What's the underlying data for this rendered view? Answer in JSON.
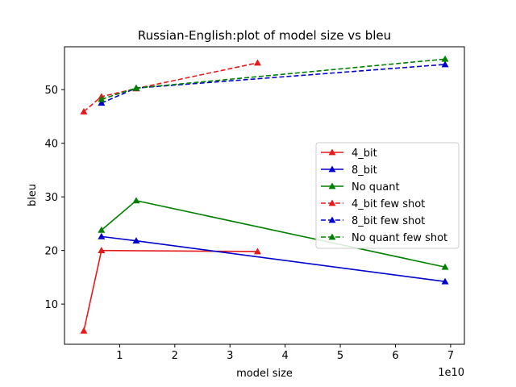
{
  "chart_data": {
    "type": "line",
    "title": "Russian-English:plot of model size vs bleu",
    "xlabel": "model size",
    "ylabel": "bleu",
    "x_offset_label": "1e10",
    "x_scale": 10000000000.0,
    "xlim": [
      0,
      7.25
    ],
    "ylim": [
      2.5,
      58
    ],
    "xticks": [
      1,
      2,
      3,
      4,
      5,
      6,
      7
    ],
    "yticks": [
      10,
      20,
      30,
      40,
      50
    ],
    "grid": false,
    "legend_position": "center-right",
    "series": [
      {
        "name": "4_bit",
        "color": "#e41a1c",
        "style": "solid",
        "marker": "triangle",
        "x": [
          0.35,
          0.67,
          3.5
        ],
        "y": [
          5.0,
          20.0,
          19.8
        ]
      },
      {
        "name": "8_bit",
        "color": "#0000cc",
        "style": "solid",
        "marker": "triangle",
        "x": [
          0.67,
          1.3,
          6.9
        ],
        "y": [
          22.6,
          21.8,
          14.2
        ]
      },
      {
        "name": "No quant",
        "color": "#008000",
        "style": "solid",
        "marker": "triangle",
        "x": [
          0.67,
          1.3,
          6.9
        ],
        "y": [
          23.8,
          29.3,
          16.9
        ]
      },
      {
        "name": "4_bit few shot",
        "color": "#e41a1c",
        "style": "dashed",
        "marker": "triangle",
        "x": [
          0.35,
          0.67,
          1.3,
          3.5
        ],
        "y": [
          45.9,
          48.7,
          50.2,
          55.0
        ]
      },
      {
        "name": "8_bit few shot",
        "color": "#0000cc",
        "style": "dashed",
        "marker": "triangle",
        "x": [
          0.67,
          1.3,
          6.9
        ],
        "y": [
          47.5,
          50.3,
          54.7
        ]
      },
      {
        "name": "No quant few shot",
        "color": "#008000",
        "style": "dashed",
        "marker": "triangle",
        "x": [
          0.67,
          1.3,
          6.9
        ],
        "y": [
          48.2,
          50.3,
          55.7
        ]
      }
    ]
  }
}
